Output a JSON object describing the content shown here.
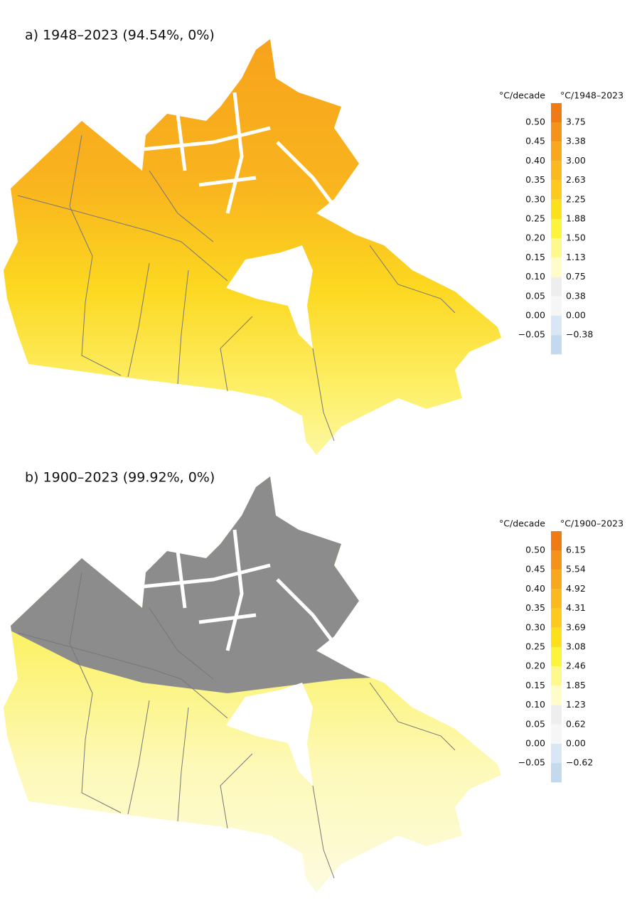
{
  "panels": [
    {
      "title": "a) 1948–2023 (94.54%, 0%)",
      "legend": {
        "left_header": "°C/decade",
        "right_header": "°C/1948–2023",
        "colors": [
          "#f07a14",
          "#f5921a",
          "#f8a81c",
          "#fab91e",
          "#fcca1c",
          "#fde01c",
          "#fcf43c",
          "#fdf98c",
          "#fefcc8",
          "#eeeeee",
          "#f6f6f6",
          "#d8e7f3",
          "#c2d9ee"
        ],
        "rows": [
          {
            "decade": "0.50",
            "period": "3.75"
          },
          {
            "decade": "0.45",
            "period": "3.38"
          },
          {
            "decade": "0.40",
            "period": "3.00"
          },
          {
            "decade": "0.35",
            "period": "2.63"
          },
          {
            "decade": "0.30",
            "period": "2.25"
          },
          {
            "decade": "0.25",
            "period": "1.88"
          },
          {
            "decade": "0.20",
            "period": "1.50"
          },
          {
            "decade": "0.15",
            "period": "1.13"
          },
          {
            "decade": "0.10",
            "period": "0.75"
          },
          {
            "decade": "0.05",
            "period": "0.38"
          },
          {
            "decade": "0.00",
            "period": "0.00"
          },
          {
            "decade": "−0.05",
            "period": "−0.38"
          }
        ]
      }
    },
    {
      "title": "b) 1900–2023 (99.92%, 0%)",
      "legend": {
        "left_header": "°C/decade",
        "right_header": "°C/1900–2023",
        "colors": [
          "#f07a14",
          "#f5921a",
          "#f8a81c",
          "#fab91e",
          "#fcca1c",
          "#fde01c",
          "#fcf43c",
          "#fdf98c",
          "#fefcc8",
          "#eeeeee",
          "#f6f6f6",
          "#d8e7f3",
          "#c2d9ee"
        ],
        "rows": [
          {
            "decade": "0.50",
            "period": "6.15"
          },
          {
            "decade": "0.45",
            "period": "5.54"
          },
          {
            "decade": "0.40",
            "period": "4.92"
          },
          {
            "decade": "0.35",
            "period": "4.31"
          },
          {
            "decade": "0.30",
            "period": "3.69"
          },
          {
            "decade": "0.25",
            "period": "3.08"
          },
          {
            "decade": "0.20",
            "period": "2.46"
          },
          {
            "decade": "0.15",
            "period": "1.85"
          },
          {
            "decade": "0.10",
            "period": "1.23"
          },
          {
            "decade": "0.05",
            "period": "0.62"
          },
          {
            "decade": "0.00",
            "period": "0.00"
          },
          {
            "decade": "−0.05",
            "period": "−0.62"
          }
        ]
      }
    }
  ]
}
